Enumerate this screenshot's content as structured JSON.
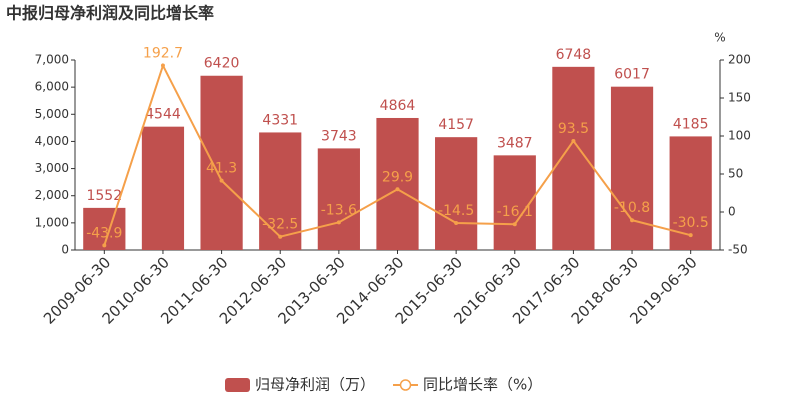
{
  "chart_data": {
    "type": "bar",
    "title": "中报归母净利润及同比增长率",
    "categories": [
      "2009-06-30",
      "2010-06-30",
      "2011-06-30",
      "2012-06-30",
      "2013-06-30",
      "2014-06-30",
      "2015-06-30",
      "2016-06-30",
      "2017-06-30",
      "2018-06-30",
      "2019-06-30"
    ],
    "series": [
      {
        "name": "归母净利润（万）",
        "type": "bar",
        "color": "#c0504e",
        "values": [
          1552,
          4544,
          6420,
          4331,
          3743,
          4864,
          4157,
          3487,
          6748,
          6017,
          4185
        ]
      },
      {
        "name": "同比增长率（%）",
        "type": "line",
        "axis": "y2",
        "color": "#f5a04a",
        "values": [
          -43.9,
          192.7,
          41.3,
          -32.5,
          -13.6,
          29.9,
          -14.5,
          -16.1,
          93.5,
          -10.8,
          -30.5
        ]
      }
    ],
    "ylim": [
      0,
      7000
    ],
    "yticks": [
      0,
      {
        "value": 1000,
        "label": "1,000"
      },
      {
        "value": 2000,
        "label": "2,000"
      },
      {
        "value": 3000,
        "label": "3,000"
      },
      {
        "value": 4000,
        "label": "4,000"
      },
      {
        "value": 5000,
        "label": "5,000"
      },
      {
        "value": 6000,
        "label": "6,000"
      },
      {
        "value": 7000,
        "label": "7,000"
      }
    ],
    "y2label": "%",
    "y2lim": [
      -50,
      200
    ],
    "y2ticks": [
      -50,
      0,
      50,
      100,
      150,
      200
    ]
  }
}
